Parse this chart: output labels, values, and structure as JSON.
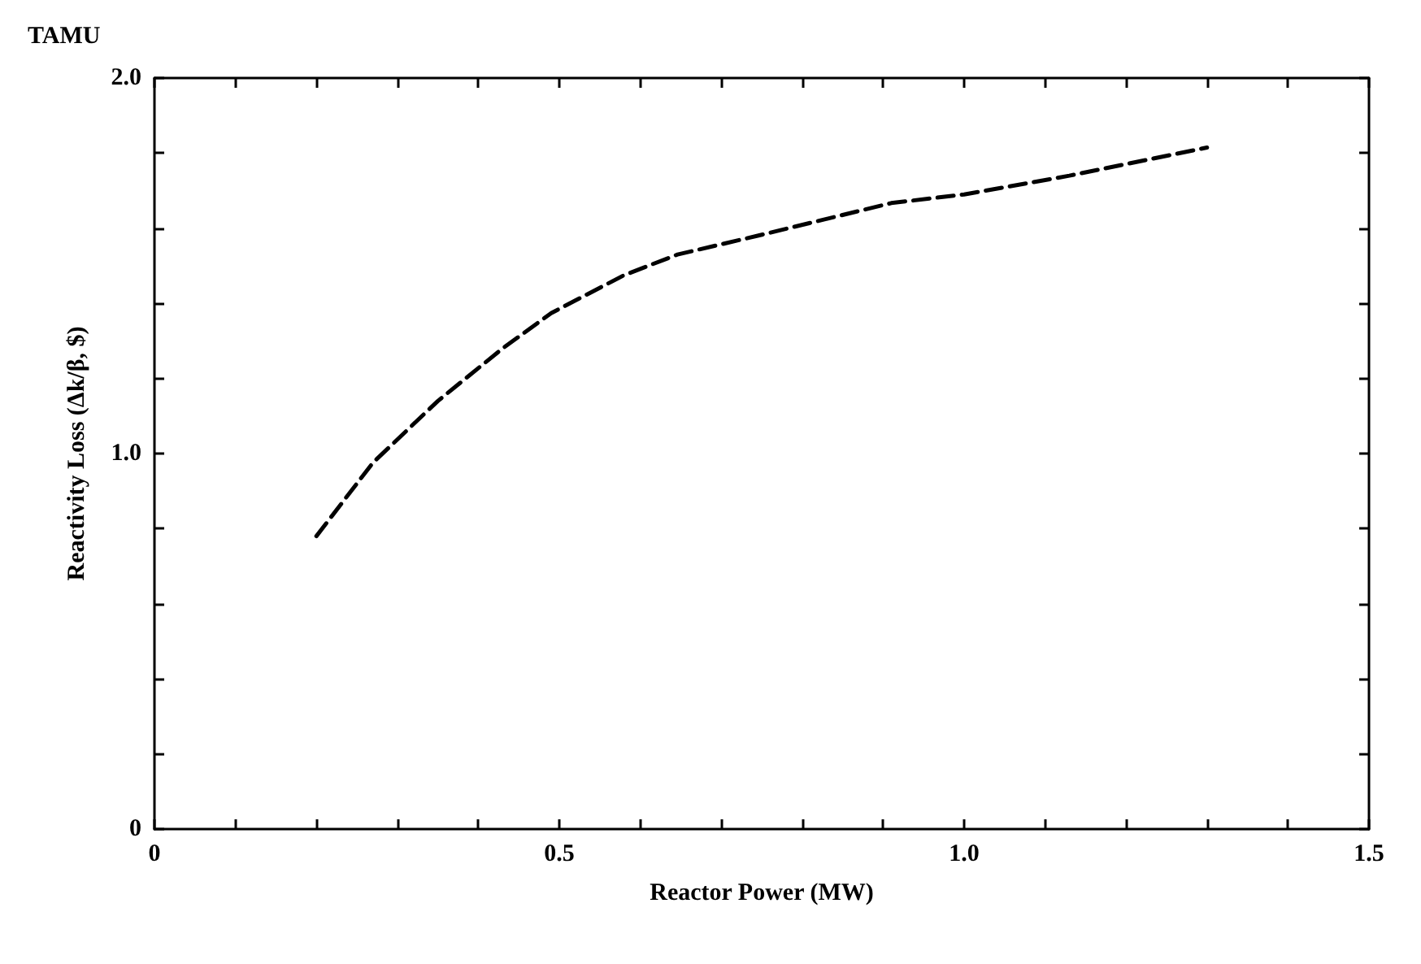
{
  "chart_data": {
    "type": "line",
    "title": "TAMU",
    "xlabel": "Reactor Power (MW)",
    "ylabel": "Reactivity Loss (Δk/β, $)",
    "x": [
      0.2,
      0.27,
      0.35,
      0.43,
      0.49,
      0.58,
      0.646,
      0.745,
      0.91,
      1.0,
      1.13,
      1.3
    ],
    "series": [
      {
        "color": "#000000",
        "values": [
          0.78,
          0.976,
          1.14,
          1.28,
          1.374,
          1.475,
          1.53,
          1.58,
          1.667,
          1.69,
          1.74,
          1.815
        ]
      }
    ],
    "xlim": [
      0,
      1.5
    ],
    "xticks": [
      {
        "value": 0,
        "label": "0"
      },
      {
        "value": 0.1,
        "label": null
      },
      {
        "value": 0.2,
        "label": null
      },
      {
        "value": 0.3,
        "label": null
      },
      {
        "value": 0.4,
        "label": null
      },
      {
        "value": 0.5,
        "label": "0.5"
      },
      {
        "value": 0.6,
        "label": null
      },
      {
        "value": 0.7,
        "label": null
      },
      {
        "value": 0.8,
        "label": null
      },
      {
        "value": 0.9,
        "label": null
      },
      {
        "value": 1.0,
        "label": "1.0"
      },
      {
        "value": 1.1,
        "label": null
      },
      {
        "value": 1.2,
        "label": null
      },
      {
        "value": 1.3,
        "label": null
      },
      {
        "value": 1.4,
        "label": null
      },
      {
        "value": 1.5,
        "label": "1.5"
      }
    ],
    "ylim": [
      0,
      2
    ],
    "yticks": [
      {
        "value": 0,
        "label": "0"
      },
      {
        "value": 0.2,
        "label": null
      },
      {
        "value": 0.4,
        "label": null
      },
      {
        "value": 0.6,
        "label": null
      },
      {
        "value": 0.8,
        "label": null
      },
      {
        "value": 1.0,
        "label": "1.0"
      },
      {
        "value": 1.2,
        "label": null
      },
      {
        "value": 1.4,
        "label": null
      },
      {
        "value": 1.6,
        "label": null
      },
      {
        "value": 1.8,
        "label": null
      },
      {
        "value": 2.0,
        "label": "2.0"
      }
    ],
    "grid": false,
    "marker": "none",
    "line_style": "dashed"
  }
}
